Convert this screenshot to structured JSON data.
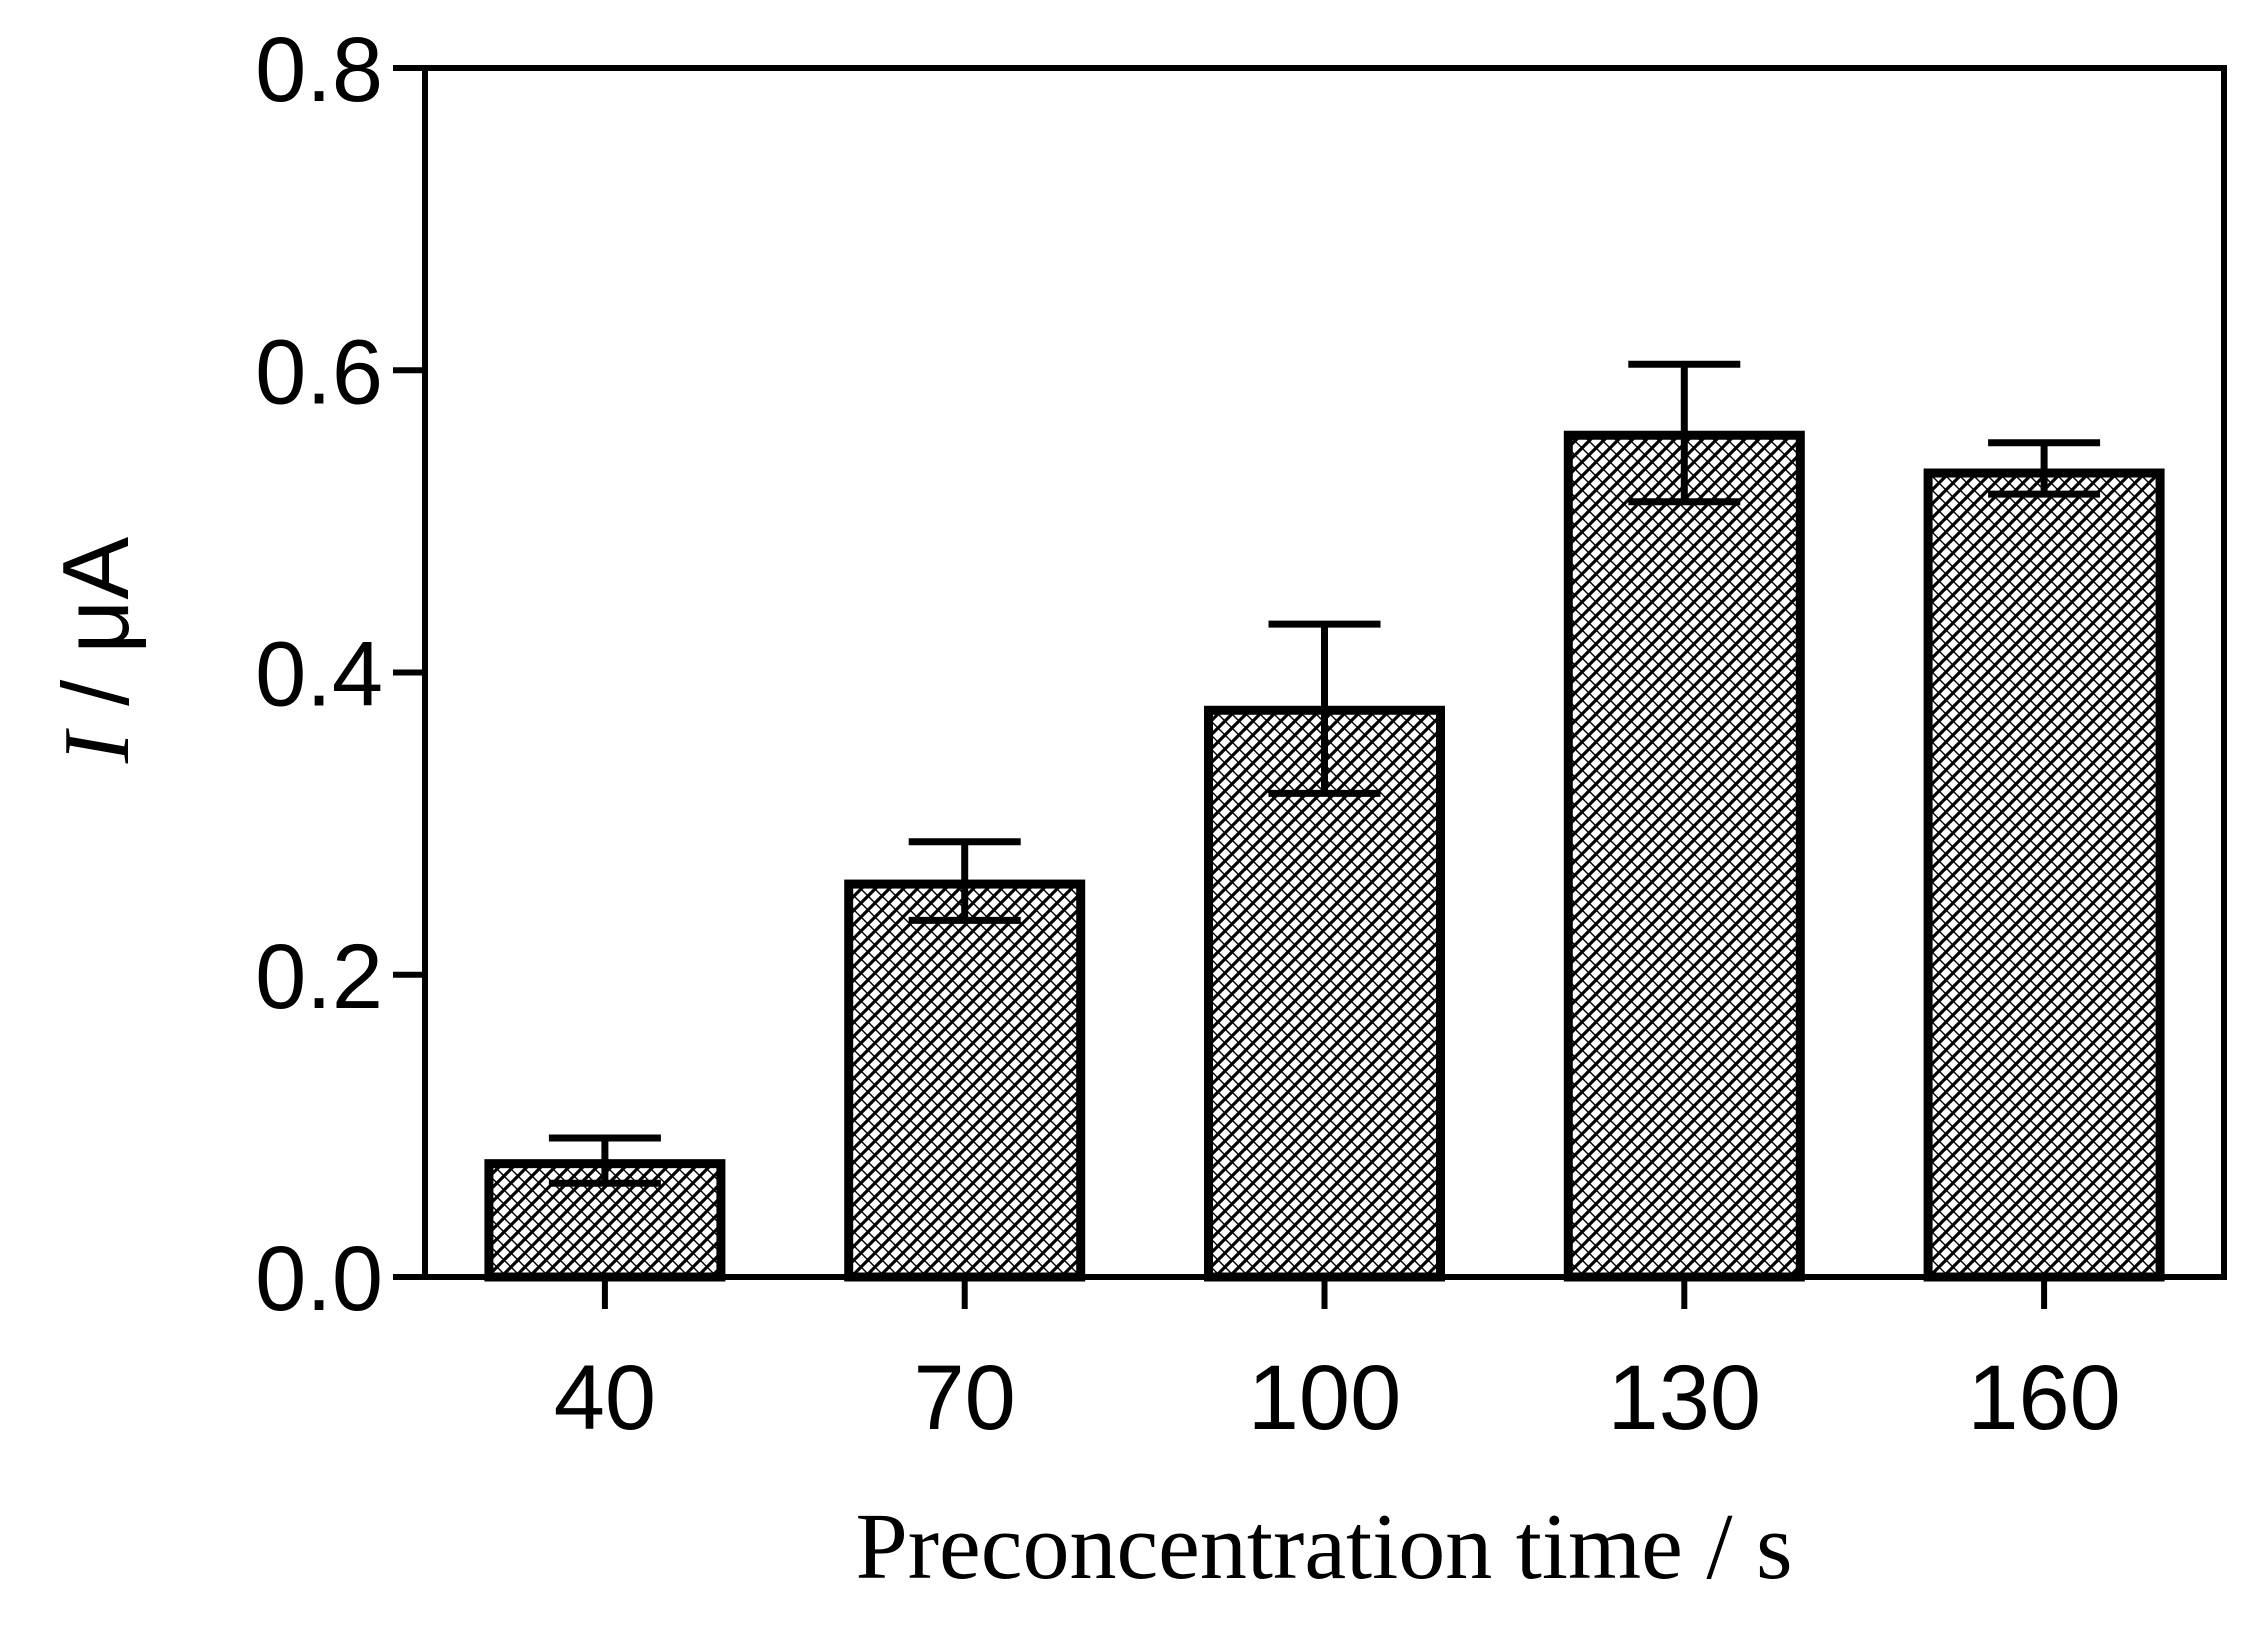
{
  "chart_data": {
    "type": "bar",
    "title": "",
    "xlabel": "Preconcentration time / s",
    "ylabel": {
      "symbol": "I",
      "unit": " / μA"
    },
    "categories": [
      "40",
      "70",
      "100",
      "130",
      "160"
    ],
    "values": [
      0.075,
      0.26,
      0.375,
      0.557,
      0.532
    ],
    "error_upper": [
      0.092,
      0.288,
      0.432,
      0.604,
      0.552
    ],
    "error_lower": [
      0.062,
      0.236,
      0.32,
      0.513,
      0.518
    ],
    "ylim": [
      0,
      0.8
    ],
    "yticks": [
      "0.0",
      "0.2",
      "0.4",
      "0.6",
      "0.8"
    ],
    "ytick_values": [
      0,
      0.2,
      0.4,
      0.6,
      0.8
    ],
    "legend": false,
    "grid": false,
    "bar_pattern": "crosshatch",
    "colors": {
      "stroke": "#000000",
      "background": "#ffffff"
    }
  }
}
